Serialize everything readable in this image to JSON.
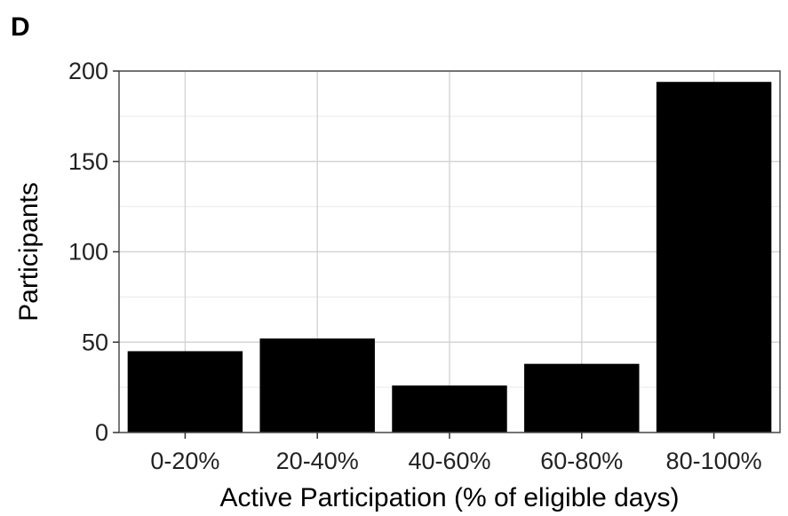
{
  "panel_label": "D",
  "chart_data": {
    "type": "bar",
    "categories": [
      "0-20%",
      "20-40%",
      "40-60%",
      "60-80%",
      "80-100%"
    ],
    "values": [
      45,
      52,
      26,
      38,
      194
    ],
    "xlabel": "Active Participation (% of eligible days)",
    "ylabel": "Participants",
    "ylim": [
      0,
      200
    ],
    "yticks": [
      0,
      50,
      100,
      150,
      200
    ],
    "grid": true,
    "bar_color": "#000000"
  }
}
